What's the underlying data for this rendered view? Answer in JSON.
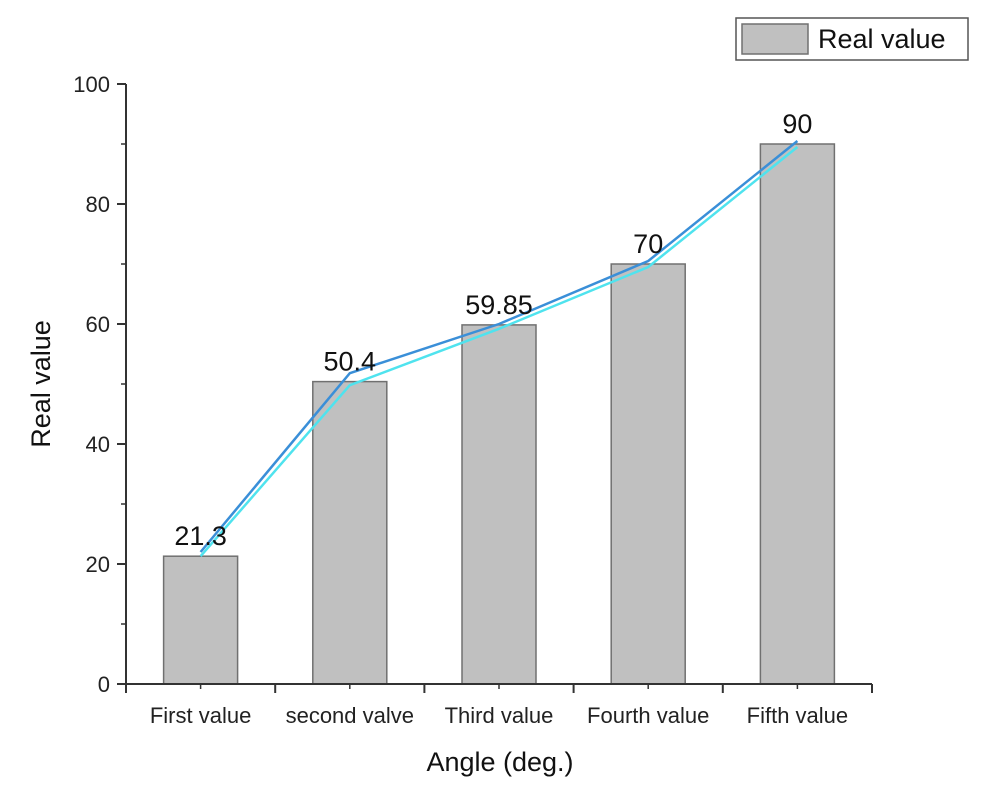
{
  "chart_data": {
    "type": "bar",
    "title": "",
    "xlabel": "Angle (deg.)",
    "ylabel": "Real value",
    "ylim": [
      0,
      100
    ],
    "yticks": [
      "0",
      "20",
      "40",
      "60",
      "80",
      "100"
    ],
    "categories": [
      "First value",
      "second valve",
      "Third value",
      "Fourth value",
      "Fifth value"
    ],
    "series": [
      {
        "name": "Real value",
        "type": "bar",
        "values": [
          21.3,
          50.4,
          59.85,
          70,
          90
        ],
        "data_labels": [
          "21.3",
          "50.4",
          "59.85",
          "70",
          "90"
        ],
        "color": "#c0c0c0",
        "edge_color": "#707070"
      }
    ],
    "overlay_lines": [
      {
        "color": "#3a8fd8",
        "values": [
          22,
          51.8,
          60,
          70.5,
          90.5
        ]
      },
      {
        "color": "#4fe3ee",
        "values": [
          21.3,
          49.8,
          59.2,
          69.5,
          89.5
        ]
      }
    ],
    "legend": {
      "position": "top-right",
      "label": "Real value"
    },
    "grid": false
  }
}
